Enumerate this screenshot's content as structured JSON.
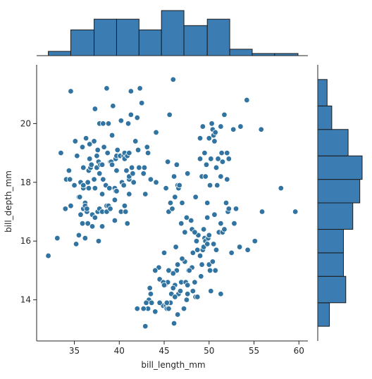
{
  "chart_data": {
    "type": "scatter",
    "xlabel": "bill_length_mm",
    "ylabel": "bill_depth_mm",
    "xlim": [
      30.8,
      61.0
    ],
    "ylim": [
      12.6,
      22.0
    ],
    "xticks": [
      35,
      40,
      45,
      50,
      55,
      60
    ],
    "yticks": [
      14,
      16,
      18,
      20
    ],
    "colors": {
      "marker": "#3274a1",
      "marker_edge": "#ffffff",
      "bar_fill": "#3b7db3",
      "bar_edge": "#1a1a1a",
      "axis": "#262626"
    },
    "marginal_x_histogram": {
      "bin_edges": [
        32.1,
        34.6,
        37.2,
        39.7,
        42.2,
        44.7,
        47.2,
        49.8,
        52.3,
        54.8,
        57.3,
        59.9
      ],
      "counts": [
        2,
        12,
        17,
        17,
        12,
        21,
        14,
        17,
        3,
        1,
        1
      ]
    },
    "marginal_y_histogram": {
      "bin_edges": [
        13.1,
        13.9,
        14.8,
        15.6,
        16.4,
        17.3,
        18.1,
        18.9,
        19.8,
        20.6,
        21.5
      ],
      "counts": [
        5,
        12,
        11,
        11,
        15,
        18,
        19,
        13,
        6,
        4
      ]
    },
    "points": [
      [
        32.1,
        15.5
      ],
      [
        33.1,
        16.1
      ],
      [
        33.5,
        19.0
      ],
      [
        34.0,
        17.1
      ],
      [
        34.1,
        18.1
      ],
      [
        34.4,
        18.4
      ],
      [
        34.5,
        18.1
      ],
      [
        34.6,
        21.1
      ],
      [
        34.6,
        17.2
      ],
      [
        35.0,
        17.9
      ],
      [
        35.1,
        19.4
      ],
      [
        35.2,
        15.9
      ],
      [
        35.3,
        18.9
      ],
      [
        35.5,
        16.2
      ],
      [
        35.5,
        17.5
      ],
      [
        35.6,
        17.5
      ],
      [
        35.7,
        16.9
      ],
      [
        35.7,
        18.0
      ],
      [
        35.9,
        16.6
      ],
      [
        35.9,
        19.2
      ],
      [
        36.0,
        17.1
      ],
      [
        36.0,
        17.8
      ],
      [
        36.0,
        18.5
      ],
      [
        36.0,
        17.9
      ],
      [
        36.2,
        16.1
      ],
      [
        36.2,
        17.3
      ],
      [
        36.2,
        17.2
      ],
      [
        36.3,
        19.5
      ],
      [
        36.4,
        17.0
      ],
      [
        36.4,
        17.1
      ],
      [
        36.5,
        16.6
      ],
      [
        36.5,
        18.0
      ],
      [
        36.6,
        17.8
      ],
      [
        36.6,
        18.4
      ],
      [
        36.7,
        19.3
      ],
      [
        36.7,
        18.8
      ],
      [
        36.8,
        18.5
      ],
      [
        36.9,
        18.6
      ],
      [
        37.0,
        16.9
      ],
      [
        37.0,
        16.5
      ],
      [
        37.2,
        18.1
      ],
      [
        37.2,
        19.4
      ],
      [
        37.3,
        20.5
      ],
      [
        37.3,
        16.8
      ],
      [
        37.3,
        17.8
      ],
      [
        37.5,
        18.9
      ],
      [
        37.5,
        18.5
      ],
      [
        37.6,
        19.1
      ],
      [
        37.6,
        17.0
      ],
      [
        37.7,
        18.7
      ],
      [
        37.7,
        16.0
      ],
      [
        37.8,
        18.3
      ],
      [
        37.8,
        17.1
      ],
      [
        37.8,
        20.0
      ],
      [
        37.9,
        18.6
      ],
      [
        38.1,
        18.6
      ],
      [
        38.1,
        17.0
      ],
      [
        38.1,
        16.5
      ],
      [
        38.1,
        17.6
      ],
      [
        38.2,
        18.1
      ],
      [
        38.2,
        20.0
      ],
      [
        38.3,
        19.2
      ],
      [
        38.5,
        17.9
      ],
      [
        38.6,
        21.2
      ],
      [
        38.6,
        17.2
      ],
      [
        38.6,
        17.0
      ],
      [
        38.7,
        19.0
      ],
      [
        38.8,
        17.2
      ],
      [
        38.8,
        20.0
      ],
      [
        38.9,
        17.8
      ],
      [
        39.0,
        17.1
      ],
      [
        39.0,
        18.7
      ],
      [
        39.1,
        18.7
      ],
      [
        39.2,
        19.6
      ],
      [
        39.2,
        18.6
      ],
      [
        39.3,
        20.6
      ],
      [
        39.5,
        16.7
      ],
      [
        39.5,
        17.4
      ],
      [
        39.5,
        17.8
      ],
      [
        39.6,
        17.7
      ],
      [
        39.6,
        18.8
      ],
      [
        39.7,
        18.4
      ],
      [
        39.7,
        17.7
      ],
      [
        39.7,
        18.9
      ],
      [
        39.8,
        19.1
      ],
      [
        40.1,
        18.9
      ],
      [
        40.2,
        17.0
      ],
      [
        40.2,
        20.1
      ],
      [
        40.3,
        18.0
      ],
      [
        40.5,
        18.9
      ],
      [
        40.5,
        17.9
      ],
      [
        40.6,
        18.8
      ],
      [
        40.6,
        19.0
      ],
      [
        40.6,
        17.2
      ],
      [
        40.7,
        17.0
      ],
      [
        40.8,
        18.4
      ],
      [
        40.9,
        16.6
      ],
      [
        40.9,
        18.9
      ],
      [
        41.0,
        20.0
      ],
      [
        41.1,
        17.6
      ],
      [
        41.1,
        19.0
      ],
      [
        41.1,
        18.1
      ],
      [
        41.1,
        18.2
      ],
      [
        41.3,
        20.3
      ],
      [
        41.3,
        21.1
      ],
      [
        41.4,
        18.5
      ],
      [
        41.5,
        18.3
      ],
      [
        41.6,
        18.0
      ],
      [
        41.8,
        19.4
      ],
      [
        42.0,
        20.2
      ],
      [
        42.1,
        19.1
      ],
      [
        42.2,
        18.5
      ],
      [
        42.3,
        21.2
      ],
      [
        42.5,
        20.7
      ],
      [
        42.7,
        18.3
      ],
      [
        42.8,
        18.5
      ],
      [
        42.9,
        17.6
      ],
      [
        43.1,
        19.2
      ],
      [
        43.2,
        19.0
      ],
      [
        43.5,
        18.1
      ],
      [
        44.1,
        19.7
      ],
      [
        44.1,
        18.0
      ],
      [
        45.6,
        20.3
      ],
      [
        46.0,
        21.5
      ],
      [
        46.5,
        17.9
      ],
      [
        47.0,
        17.3
      ],
      [
        47.5,
        16.8
      ],
      [
        48.5,
        17.5
      ],
      [
        49.0,
        19.5
      ],
      [
        49.2,
        18.2
      ],
      [
        49.5,
        19.0
      ],
      [
        49.7,
        18.6
      ],
      [
        49.8,
        17.3
      ],
      [
        50.0,
        19.5
      ],
      [
        50.2,
        18.8
      ],
      [
        50.3,
        20.0
      ],
      [
        50.5,
        19.6
      ],
      [
        50.6,
        19.4
      ],
      [
        50.8,
        18.5
      ],
      [
        51.3,
        19.9
      ],
      [
        51.3,
        18.2
      ],
      [
        51.5,
        18.7
      ],
      [
        51.7,
        20.3
      ],
      [
        52.0,
        18.1
      ],
      [
        52.0,
        19.0
      ],
      [
        52.2,
        18.8
      ],
      [
        52.7,
        19.8
      ],
      [
        53.5,
        19.9
      ],
      [
        54.2,
        20.8
      ],
      [
        55.8,
        19.8
      ],
      [
        51.0,
        18.8
      ],
      [
        51.4,
        19.0
      ],
      [
        49.3,
        19.9
      ],
      [
        49.6,
        18.2
      ],
      [
        50.9,
        17.9
      ],
      [
        50.1,
        17.9
      ],
      [
        47.6,
        18.3
      ],
      [
        46.4,
        18.6
      ],
      [
        45.2,
        17.8
      ],
      [
        45.7,
        17.3
      ],
      [
        46.2,
        17.5
      ],
      [
        46.6,
        17.8
      ],
      [
        46.7,
        17.9
      ],
      [
        46.9,
        16.6
      ],
      [
        45.5,
        17.0
      ],
      [
        45.4,
        18.7
      ],
      [
        45.9,
        17.1
      ],
      [
        46.1,
        18.2
      ],
      [
        48.1,
        16.4
      ],
      [
        50.4,
        19.8
      ],
      [
        50.7,
        19.7
      ],
      [
        49.0,
        18.8
      ],
      [
        58.0,
        17.8
      ],
      [
        55.9,
        17.0
      ],
      [
        59.6,
        17.0
      ],
      [
        42.9,
        13.1
      ],
      [
        43.2,
        13.7
      ],
      [
        43.3,
        14.0
      ],
      [
        43.4,
        14.4
      ],
      [
        43.5,
        14.2
      ],
      [
        43.6,
        13.9
      ],
      [
        44.0,
        13.6
      ],
      [
        44.4,
        15.1
      ],
      [
        44.5,
        14.7
      ],
      [
        44.9,
        13.8
      ],
      [
        45.1,
        14.5
      ],
      [
        45.2,
        13.8
      ],
      [
        45.3,
        13.7
      ],
      [
        45.4,
        14.6
      ],
      [
        45.5,
        13.7
      ],
      [
        45.7,
        13.9
      ],
      [
        45.8,
        14.2
      ],
      [
        46.1,
        13.2
      ],
      [
        46.2,
        14.5
      ],
      [
        46.3,
        15.8
      ],
      [
        46.4,
        15.0
      ],
      [
        46.5,
        13.5
      ],
      [
        46.6,
        14.2
      ],
      [
        46.8,
        14.3
      ],
      [
        46.9,
        14.6
      ],
      [
        47.2,
        13.7
      ],
      [
        47.3,
        15.3
      ],
      [
        47.4,
        14.6
      ],
      [
        47.5,
        14.0
      ],
      [
        47.6,
        14.5
      ],
      [
        47.7,
        15.0
      ],
      [
        47.8,
        15.0
      ],
      [
        48.1,
        15.1
      ],
      [
        48.2,
        14.3
      ],
      [
        48.4,
        14.6
      ],
      [
        48.5,
        14.1
      ],
      [
        48.6,
        16.0
      ],
      [
        48.7,
        14.1
      ],
      [
        48.8,
        16.2
      ],
      [
        49.1,
        14.8
      ],
      [
        49.2,
        15.2
      ],
      [
        49.3,
        15.7
      ],
      [
        49.4,
        15.8
      ],
      [
        49.5,
        16.1
      ],
      [
        49.6,
        16.0
      ],
      [
        49.8,
        15.9
      ],
      [
        49.9,
        16.1
      ],
      [
        50.0,
        15.2
      ],
      [
        50.1,
        15.0
      ],
      [
        50.2,
        14.3
      ],
      [
        50.4,
        15.3
      ],
      [
        50.5,
        15.9
      ],
      [
        50.7,
        15.0
      ],
      [
        50.8,
        15.7
      ],
      [
        51.1,
        16.3
      ],
      [
        51.3,
        14.2
      ],
      [
        51.5,
        16.3
      ],
      [
        52.1,
        17.0
      ],
      [
        52.2,
        17.1
      ],
      [
        52.5,
        15.6
      ],
      [
        53.4,
        15.8
      ],
      [
        54.3,
        15.7
      ],
      [
        55.1,
        16.0
      ],
      [
        47.0,
        15.4
      ],
      [
        46.0,
        14.4
      ],
      [
        44.0,
        15.0
      ],
      [
        45.0,
        15.6
      ],
      [
        47.3,
        16.3
      ],
      [
        48.0,
        16.7
      ],
      [
        48.4,
        16.3
      ],
      [
        48.2,
        15.6
      ],
      [
        46.5,
        15.2
      ],
      [
        45.5,
        15.0
      ],
      [
        44.9,
        14.6
      ],
      [
        45.3,
        13.9
      ],
      [
        46.2,
        14.1
      ],
      [
        47.8,
        15.0
      ],
      [
        43.0,
        13.9
      ],
      [
        42.0,
        13.7
      ],
      [
        42.7,
        13.7
      ],
      [
        44.5,
        13.9
      ],
      [
        45.0,
        14.5
      ],
      [
        46.0,
        14.9
      ],
      [
        47.6,
        14.2
      ],
      [
        48.7,
        15.7
      ],
      [
        49.0,
        15.5
      ],
      [
        50.0,
        16.2
      ],
      [
        51.3,
        16.6
      ],
      [
        52.8,
        16.6
      ],
      [
        53.0,
        17.1
      ],
      [
        51.7,
        16.4
      ],
      [
        49.8,
        16.8
      ],
      [
        50.6,
        16.9
      ],
      [
        51.9,
        17.3
      ],
      [
        49.4,
        16.4
      ]
    ]
  }
}
